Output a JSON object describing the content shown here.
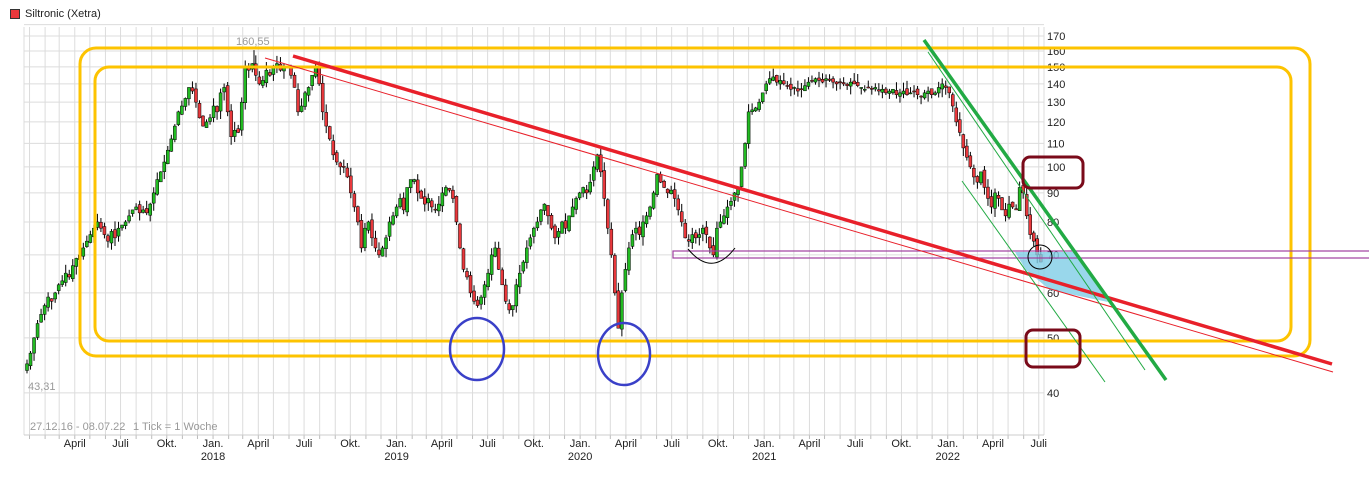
{
  "legend": {
    "label": "Siltronic (Xetra)",
    "color": "#e8383c"
  },
  "chart_data": {
    "type": "candlestick",
    "title": "Siltronic (Xetra)",
    "period_label": "27.12.16 - 08.07.22",
    "interval_label": "1 Tick = 1 Woche",
    "start_date": "2016-12-27",
    "end_date": "2022-07-08",
    "interval": "week",
    "y_scale": "log",
    "ylim": [
      36,
      178
    ],
    "y_ticks": [
      40,
      50,
      60,
      70,
      80,
      90,
      100,
      110,
      120,
      130,
      140,
      150,
      160,
      170
    ],
    "grid": true,
    "high_label": "160,55",
    "low_label": "43,31",
    "high": 160.55,
    "low": 43.31,
    "colors": {
      "up": "#22bb22",
      "down": "#e8383c",
      "wick": "#000000"
    },
    "x_ticks": [
      {
        "label": "April",
        "date": "2017-04-01"
      },
      {
        "label": "Juli",
        "date": "2017-07-01"
      },
      {
        "label": "Okt.",
        "date": "2017-10-01"
      },
      {
        "label": "Jan.",
        "year": "2018",
        "date": "2018-01-01"
      },
      {
        "label": "April",
        "date": "2018-04-01"
      },
      {
        "label": "Juli",
        "date": "2018-07-01"
      },
      {
        "label": "Okt.",
        "date": "2018-10-01"
      },
      {
        "label": "Jan.",
        "year": "2019",
        "date": "2019-01-01"
      },
      {
        "label": "April",
        "date": "2019-04-01"
      },
      {
        "label": "Juli",
        "date": "2019-07-01"
      },
      {
        "label": "Okt.",
        "date": "2019-10-01"
      },
      {
        "label": "Jan.",
        "year": "2020",
        "date": "2020-01-01"
      },
      {
        "label": "April",
        "date": "2020-04-01"
      },
      {
        "label": "Juli",
        "date": "2020-07-01"
      },
      {
        "label": "Okt.",
        "date": "2020-10-01"
      },
      {
        "label": "Jan.",
        "year": "2021",
        "date": "2021-01-01"
      },
      {
        "label": "April",
        "date": "2021-04-01"
      },
      {
        "label": "Juli",
        "date": "2021-07-01"
      },
      {
        "label": "Okt.",
        "date": "2021-10-01"
      },
      {
        "label": "Jan.",
        "year": "2022",
        "date": "2022-01-01"
      },
      {
        "label": "April",
        "date": "2022-04-01"
      },
      {
        "label": "Juli",
        "date": "2022-07-01"
      }
    ],
    "weekly_close": [
      45,
      47,
      50,
      53,
      55,
      57,
      59,
      58,
      60,
      62,
      63,
      65,
      64,
      67,
      69,
      70,
      72,
      74,
      76,
      78,
      80,
      78,
      76,
      74,
      77,
      75,
      78,
      79,
      80,
      82,
      84,
      85,
      83,
      84,
      83,
      86,
      90,
      95,
      98,
      102,
      107,
      112,
      118,
      125,
      128,
      132,
      138,
      136,
      130,
      122,
      118,
      120,
      122,
      128,
      125,
      135,
      138,
      125,
      113,
      116,
      115,
      130,
      150,
      148,
      152,
      145,
      140,
      142,
      148,
      145,
      150,
      152,
      148,
      150,
      150,
      145,
      138,
      125,
      128,
      135,
      138,
      145,
      150,
      140,
      125,
      118,
      112,
      105,
      102,
      100,
      100,
      96,
      90,
      85,
      80,
      72,
      78,
      80,
      75,
      72,
      70,
      72,
      75,
      80,
      82,
      85,
      88,
      84,
      92,
      95,
      95,
      90,
      88,
      86,
      88,
      85,
      84,
      86,
      90,
      92,
      91,
      88,
      80,
      72,
      66,
      64,
      60,
      58,
      57,
      59,
      62,
      65,
      70,
      72,
      66,
      62,
      58,
      56,
      57,
      62,
      65,
      68,
      72,
      75,
      78,
      80,
      84,
      86,
      82,
      78,
      75,
      77,
      80,
      78,
      82,
      85,
      88,
      90,
      92,
      90,
      94,
      100,
      105,
      98,
      88,
      78,
      70,
      60,
      52,
      60,
      66,
      72,
      76,
      78,
      76,
      80,
      82,
      85,
      90,
      97,
      94,
      92,
      90,
      91,
      88,
      84,
      80,
      75,
      74,
      76,
      75,
      76,
      78,
      76,
      72,
      70,
      78,
      80,
      82,
      85,
      87,
      90,
      92,
      100,
      110,
      125,
      126,
      127,
      130,
      135,
      140,
      143,
      144,
      141,
      142,
      140,
      139,
      137,
      138,
      136,
      137,
      139,
      141,
      142,
      143,
      142,
      141,
      143,
      142,
      141,
      140,
      141,
      140,
      139,
      141,
      140,
      139,
      138,
      137,
      138,
      137,
      138,
      136,
      137,
      135,
      136,
      137,
      134,
      135,
      136,
      134,
      135,
      136,
      134,
      133,
      135,
      136,
      134,
      135,
      138,
      140,
      138,
      135,
      128,
      120,
      115,
      108,
      104,
      100,
      96,
      94,
      98,
      92,
      88,
      85,
      90,
      88,
      84,
      82,
      86,
      85,
      84,
      92,
      90,
      82,
      76,
      74,
      70,
      68
    ]
  }
}
